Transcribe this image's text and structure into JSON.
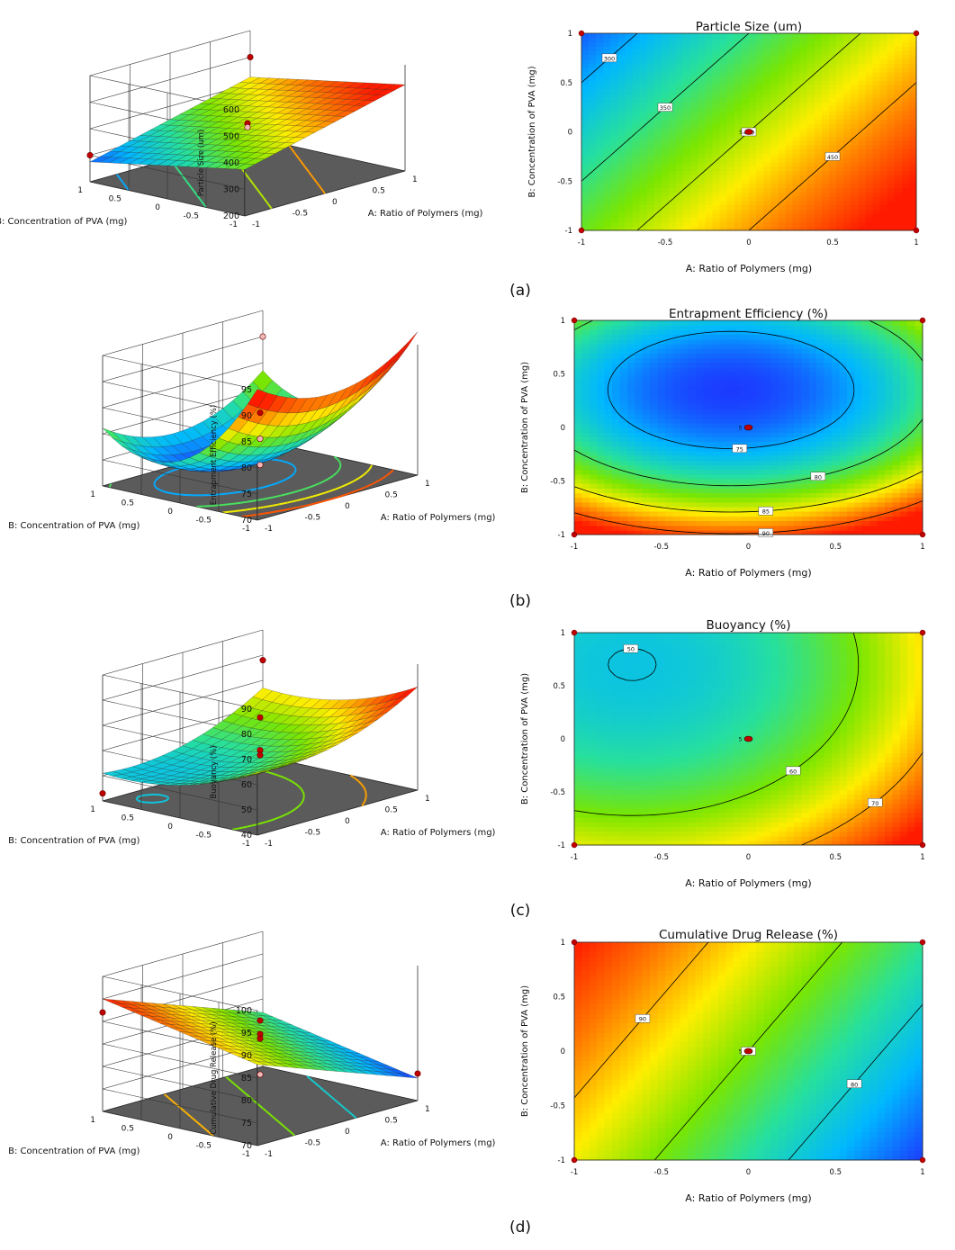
{
  "colors": {
    "ramp": [
      "#1b3cff",
      "#00b7ff",
      "#26e09e",
      "#7ae600",
      "#ffee00",
      "#ff7a00",
      "#ff1a00"
    ],
    "floor": "#5b5b5b",
    "point": "#c00000",
    "pointPale": "#f2b8b8",
    "contourLine": "#000000"
  },
  "shared": {
    "xlabel": "A: Ratio of Polymers (mg)",
    "ylabel": "B: Concentration of PVA (mg)",
    "ylabel_contour_a": "B: Concentration of PVA (mg)",
    "design_point_label": "5"
  },
  "chart_data": [
    {
      "id": "a",
      "type": "surface3d+contour",
      "panel_label": "(a)",
      "title": "Particle Size (um)",
      "zlabel": "Particle Size (um)",
      "xlabel": "A: Ratio of Polymers (mg)",
      "ylabel": "B: Concentration of PVA (mg)",
      "zlim": [
        200,
        600
      ],
      "zticks": [
        200,
        300,
        400,
        500,
        600
      ],
      "xticks_3d": [
        "-1",
        "-0.5",
        "0",
        "0.5",
        "1"
      ],
      "yticks_3d": [
        "-1",
        "-0.5",
        "0",
        "0.5",
        "1"
      ],
      "xticks": [
        -1,
        -0.5,
        0,
        0.5,
        1
      ],
      "yticks": [
        -1,
        -0.5,
        0,
        0.5,
        1
      ],
      "model": {
        "c0": 400,
        "a": 75,
        "b": -50,
        "ab": 0,
        "a2": 0,
        "b2": 0,
        "x0": 0,
        "y0": 0
      },
      "range": [
        265,
        500
      ],
      "contour_levels": [
        300,
        350,
        400,
        450
      ],
      "contour_labels": [
        "300",
        "350",
        "400",
        "450"
      ],
      "design_points_3d": [
        [
          -1,
          1,
          300
        ],
        [
          1,
          1,
          500
        ],
        [
          0,
          0,
          400
        ],
        [
          0,
          0,
          385
        ]
      ],
      "corner_points": [
        [
          -1,
          -1
        ],
        [
          -1,
          1
        ],
        [
          1,
          -1
        ],
        [
          1,
          1
        ]
      ]
    },
    {
      "id": "b",
      "type": "surface3d+contour",
      "panel_label": "(b)",
      "title": "Entrapment Efficiency (%)",
      "zlabel": "Entrapment Efficiency (%)",
      "xlabel": "A: Ratio of Polymers (mg)",
      "ylabel": "B: Concentration of PVA (mg)",
      "zlim": [
        70,
        95
      ],
      "zticks": [
        70,
        75,
        80,
        85,
        90,
        95
      ],
      "xticks_3d": [
        "-1",
        "-0.5",
        "0",
        "0.5",
        "1"
      ],
      "yticks_3d": [
        "-1",
        "-0.5",
        "0",
        "0.5",
        "1"
      ],
      "xticks": [
        -1,
        -0.5,
        0,
        0.5,
        1
      ],
      "yticks": [
        -1,
        -0.5,
        0,
        0.5,
        1
      ],
      "model": {
        "c0": 72,
        "a": 0,
        "b": 0,
        "ab": 0,
        "a2": 6,
        "b2": 10,
        "x0": -0.1,
        "y0": 0.35
      },
      "range": [
        72,
        92
      ],
      "contour_levels": [
        75,
        80,
        85,
        90
      ],
      "contour_labels": [
        "75",
        "80",
        "85",
        "90"
      ],
      "design_points_3d": [
        [
          1,
          1,
          90
        ],
        [
          0,
          0,
          83
        ],
        [
          0,
          0,
          78
        ],
        [
          0,
          0,
          73
        ]
      ],
      "corner_points": [
        [
          -1,
          -1
        ],
        [
          -1,
          1
        ],
        [
          1,
          -1
        ],
        [
          1,
          1
        ]
      ]
    },
    {
      "id": "c",
      "type": "surface3d+contour",
      "panel_label": "(c)",
      "title": "Buoyancy (%)",
      "zlabel": "Buoyancy (%)",
      "xlabel": "A: Ratio of Polymers (mg)",
      "ylabel": "B: Concentration of PVA (mg)",
      "zlim": [
        40,
        90
      ],
      "zticks": [
        40,
        50,
        60,
        70,
        80,
        90
      ],
      "xticks_3d": [
        "-1",
        "-0.5",
        "0",
        "0.5",
        "1"
      ],
      "yticks_3d": [
        "-1",
        "-0.5",
        "0",
        "0.5",
        "1"
      ],
      "xticks": [
        -1,
        -0.5,
        0,
        0.5,
        1
      ],
      "yticks": [
        -1,
        -0.5,
        0,
        0.5,
        1
      ],
      "model": {
        "c0": 55,
        "a": 8,
        "b": -7,
        "ab": 0,
        "a2": 6,
        "b2": 5,
        "x0": 0,
        "y0": 0
      },
      "range": [
        42,
        78
      ],
      "contour_levels": [
        50,
        60,
        70
      ],
      "contour_labels": [
        "50",
        "60",
        "70"
      ],
      "design_points_3d": [
        [
          1,
          1,
          78
        ],
        [
          0,
          0,
          71
        ],
        [
          0,
          0,
          58
        ],
        [
          0,
          0,
          56
        ],
        [
          -1,
          1,
          43
        ]
      ],
      "corner_points": [
        [
          -1,
          -1
        ],
        [
          -1,
          1
        ],
        [
          1,
          -1
        ],
        [
          1,
          1
        ]
      ]
    },
    {
      "id": "d",
      "type": "surface3d+contour",
      "panel_label": "(d)",
      "title": "Cumulative Drug Release (%)",
      "zlabel": "Cumulative Drug Release (%)",
      "xlabel": "A: Ratio of Polymers (mg)",
      "ylabel": "B: Concentration of PVA (mg)",
      "zlim": [
        70,
        100
      ],
      "zticks": [
        70,
        75,
        80,
        85,
        90,
        95,
        100
      ],
      "xticks_3d": [
        "-1",
        "-0.5",
        "0",
        "0.5",
        "1"
      ],
      "yticks_3d": [
        "-1",
        "-0.5",
        "0",
        "0.5",
        "1"
      ],
      "xticks": [
        -1,
        -0.5,
        0,
        0.5,
        1
      ],
      "yticks": [
        -1,
        -0.5,
        0,
        0.5,
        1
      ],
      "model": {
        "c0": 85,
        "a": -6.5,
        "b": 3.5,
        "ab": 0,
        "a2": 0,
        "b2": 0,
        "x0": 0,
        "y0": 0
      },
      "range": [
        75,
        95
      ],
      "contour_levels": [
        80,
        85,
        90
      ],
      "contour_labels": [
        "80",
        "85",
        "90"
      ],
      "design_points_3d": [
        [
          -1,
          1,
          92
        ],
        [
          0,
          0,
          89
        ],
        [
          0,
          0,
          86
        ],
        [
          0,
          0,
          85
        ],
        [
          1,
          -1,
          76
        ],
        [
          0,
          0,
          77
        ]
      ],
      "corner_points": [
        [
          -1,
          -1
        ],
        [
          -1,
          1
        ],
        [
          1,
          -1
        ],
        [
          1,
          1
        ]
      ]
    }
  ]
}
